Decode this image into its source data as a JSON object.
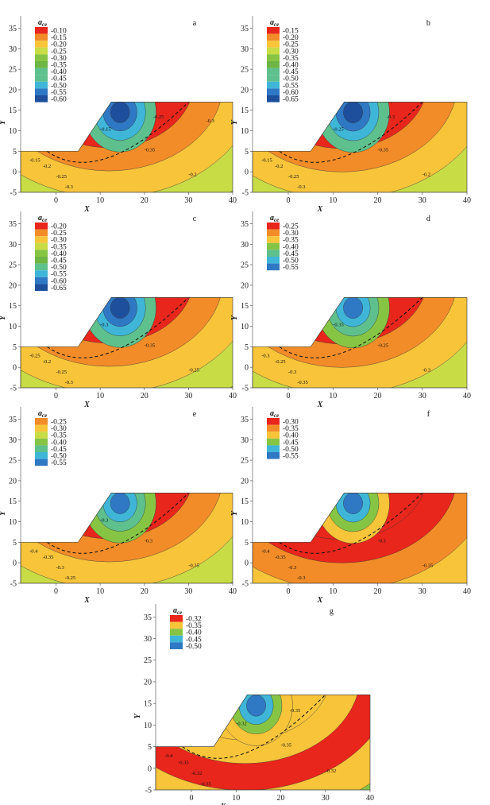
{
  "chart_data": [
    {
      "type": "contour",
      "panel_label": "a",
      "legend_title": "a",
      "legend_title_sub": "ce",
      "levels": [
        "-0.10",
        "-0.15",
        "-0.20",
        "-0.25",
        "-0.30",
        "-0.35",
        "-0.40",
        "-0.45",
        "-0.50",
        "-0.55",
        "-0.60"
      ],
      "xlabel": "X",
      "ylabel": "Y",
      "xlim": [
        -8,
        40
      ],
      "ylim": [
        -5,
        38
      ],
      "xticks": [
        "0",
        "10",
        "20",
        "30",
        "40"
      ],
      "yticks": [
        "-5",
        "0",
        "5",
        "10",
        "15",
        "20",
        "25",
        "30",
        "35"
      ],
      "contour_labels": [
        "-0.15",
        "-0.2",
        "-0.25",
        "-0.3",
        "-0.35",
        "-0.2",
        "-0.15",
        "-0.25",
        "-0.3"
      ]
    },
    {
      "type": "contour",
      "panel_label": "b",
      "legend_title": "a",
      "legend_title_sub": "ce",
      "levels": [
        "-0.15",
        "-0.20",
        "-0.25",
        "-0.30",
        "-0.35",
        "-0.40",
        "-0.45",
        "-0.50",
        "-0.55",
        "-0.60",
        "-0.65"
      ],
      "xlabel": "X",
      "ylabel": "Y",
      "xlim": [
        -8,
        40
      ],
      "ylim": [
        -5,
        38
      ],
      "xticks": [
        "0",
        "10",
        "20",
        "30",
        "40"
      ],
      "yticks": [
        "-5",
        "0",
        "5",
        "10",
        "15",
        "20",
        "25",
        "30",
        "35"
      ],
      "contour_labels": [
        "-0.15",
        "-0.2",
        "-0.25",
        "-0.3",
        "-0.35",
        "-0.2",
        "-0.25",
        "-0.3"
      ]
    },
    {
      "type": "contour",
      "panel_label": "c",
      "legend_title": "a",
      "legend_title_sub": "ce",
      "levels": [
        "-0.20",
        "-0.25",
        "-0.30",
        "-0.35",
        "-0.40",
        "-0.45",
        "-0.50",
        "-0.55",
        "-0.60",
        "-0.65"
      ],
      "xlabel": "X",
      "ylabel": "Y",
      "xlim": [
        -8,
        40
      ],
      "ylim": [
        -5,
        38
      ],
      "xticks": [
        "0",
        "10",
        "20",
        "30",
        "40"
      ],
      "yticks": [
        "-5",
        "0",
        "5",
        "10",
        "15",
        "20",
        "25",
        "30",
        "35"
      ],
      "contour_labels": [
        "-0.25",
        "-0.2",
        "-0.25",
        "-0.3",
        "-0.35",
        "-0.25",
        "-0.3"
      ]
    },
    {
      "type": "contour",
      "panel_label": "d",
      "legend_title": "a",
      "legend_title_sub": "ce",
      "levels": [
        "-0.25",
        "-0.30",
        "-0.35",
        "-0.40",
        "-0.45",
        "-0.50",
        "-0.55"
      ],
      "xlabel": "X",
      "ylabel": "Y",
      "xlim": [
        -8,
        40
      ],
      "ylim": [
        -5,
        38
      ],
      "xticks": [
        "0",
        "10",
        "20",
        "30",
        "40"
      ],
      "yticks": [
        "-5",
        "0",
        "5",
        "10",
        "15",
        "20",
        "25",
        "30",
        "35"
      ],
      "contour_labels": [
        "-0.3",
        "-0.25",
        "-0.3",
        "-0.35",
        "-0.25",
        "-0.3",
        "-0.35"
      ]
    },
    {
      "type": "contour",
      "panel_label": "e",
      "legend_title": "a",
      "legend_title_sub": "ce",
      "levels": [
        "-0.25",
        "-0.30",
        "-0.35",
        "-0.40",
        "-0.45",
        "-0.50",
        "-0.55"
      ],
      "xlabel": "X",
      "ylabel": "Y",
      "xlim": [
        -8,
        40
      ],
      "ylim": [
        -5,
        38
      ],
      "xticks": [
        "0",
        "10",
        "20",
        "30",
        "40"
      ],
      "yticks": [
        "-5",
        "0",
        "5",
        "10",
        "15",
        "20",
        "25",
        "30",
        "35"
      ],
      "contour_labels": [
        "-0.4",
        "-0.35",
        "-0.3",
        "-0.25",
        "-0.3",
        "-0.35",
        "-0.3"
      ]
    },
    {
      "type": "contour",
      "panel_label": "f",
      "legend_title": "a",
      "legend_title_sub": "ce",
      "levels": [
        "-0.30",
        "-0.35",
        "-0.40",
        "-0.45",
        "-0.50",
        "-0.55"
      ],
      "xlabel": "X",
      "ylabel": "Y",
      "xlim": [
        -8,
        40
      ],
      "ylim": [
        -5,
        38
      ],
      "xticks": [
        "0",
        "10",
        "20",
        "30",
        "40"
      ],
      "yticks": [
        "-5",
        "0",
        "5",
        "10",
        "15",
        "20",
        "25",
        "30",
        "35"
      ],
      "contour_labels": [
        "-0.4",
        "-0.35",
        "-0.3",
        "-0.3",
        "-0.3",
        "-0.35"
      ]
    },
    {
      "type": "contour",
      "panel_label": "g",
      "legend_title": "a",
      "legend_title_sub": "ce",
      "levels": [
        "-0.32",
        "-0.35",
        "-0.40",
        "-0.45",
        "-0.50"
      ],
      "xlabel": "X",
      "ylabel": "Y",
      "xlim": [
        -8,
        40
      ],
      "ylim": [
        -5,
        38
      ],
      "xticks": [
        "0",
        "10",
        "20",
        "30",
        "40"
      ],
      "yticks": [
        "-5",
        "0",
        "5",
        "10",
        "15",
        "20",
        "25",
        "30",
        "35"
      ],
      "contour_labels": [
        "-0.4",
        "-0.35",
        "-0.32",
        "-0.35",
        "-0.35",
        "-0.32",
        "-0.32",
        "-0.35"
      ]
    }
  ],
  "palette": {
    "red": "#e8261c",
    "orange": "#f28c28",
    "yellow": "#f7c43a",
    "lime": "#c8dc46",
    "green": "#86c544",
    "dgreen": "#6fb544",
    "teal": "#5ec08d",
    "cyan": "#3fb6d8",
    "blue": "#2f78c4",
    "navy": "#1e4f9c"
  }
}
